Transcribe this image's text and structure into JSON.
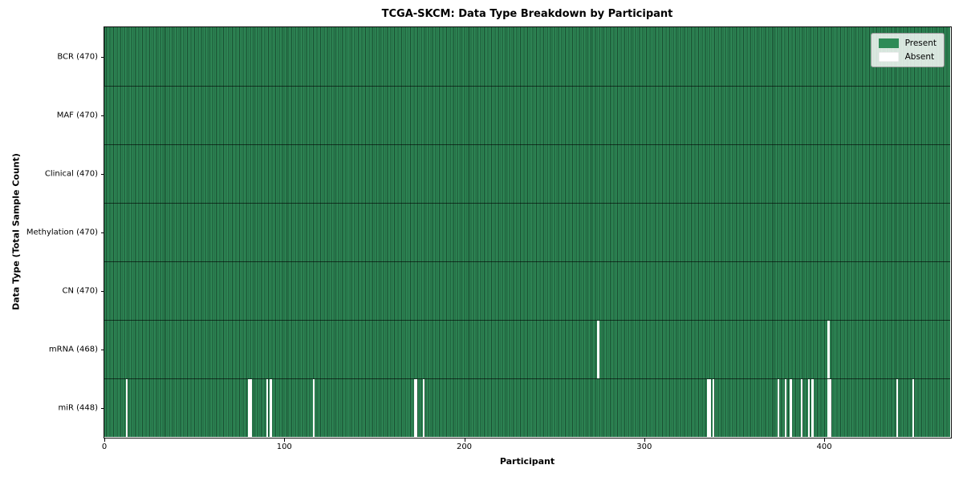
{
  "chart_data": {
    "type": "heatmap",
    "title": "TCGA-SKCM: Data Type Breakdown by Participant",
    "xlabel": "Participant",
    "ylabel": "Data Type (Total Sample Count)",
    "n_participants": 470,
    "x_ticks": [
      0,
      100,
      200,
      300,
      400
    ],
    "legend": [
      {
        "label": "Present",
        "color": "#2e8b57"
      },
      {
        "label": "Absent",
        "color": "#ffffff"
      }
    ],
    "legend_position": "upper right",
    "grid": false,
    "colors": {
      "present": "#2e8b57",
      "absent": "#ffffff",
      "cell_edge": "rgba(0,0,0,0.45)"
    },
    "rows": [
      {
        "label": "BCR (470)",
        "name": "BCR",
        "total": 470,
        "absent": []
      },
      {
        "label": "MAF (470)",
        "name": "MAF",
        "total": 470,
        "absent": []
      },
      {
        "label": "Clinical (470)",
        "name": "Clinical",
        "total": 470,
        "absent": []
      },
      {
        "label": "Methylation (470)",
        "name": "Methylation",
        "total": 470,
        "absent": []
      },
      {
        "label": "CN (470)",
        "name": "CN",
        "total": 470,
        "absent": []
      },
      {
        "label": "mRNA (468)",
        "name": "mRNA",
        "total": 468,
        "absent": [
          274,
          402
        ]
      },
      {
        "label": "miR (448)",
        "name": "miR",
        "total": 448,
        "absent": [
          12,
          80,
          81,
          90,
          92,
          116,
          172,
          173,
          177,
          335,
          336,
          338,
          374,
          378,
          381,
          387,
          391,
          393,
          402,
          403,
          440,
          449
        ]
      }
    ]
  }
}
